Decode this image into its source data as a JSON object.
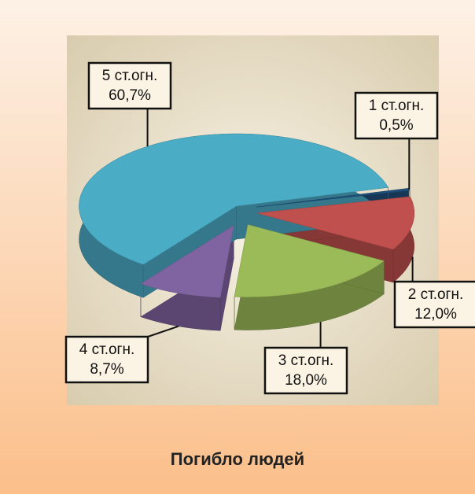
{
  "chart_data": {
    "type": "pie",
    "title": "Погибло людей",
    "categories": [
      "1 ст.огн.",
      "2 ст.огн.",
      "3 ст.огн.",
      "4 ст.огн.",
      "5 ст.огн."
    ],
    "values": [
      0.5,
      12.0,
      18.0,
      8.7,
      60.7
    ],
    "value_labels": [
      "0,5%",
      "12,0%",
      "18,0%",
      "8,7%",
      "60,7%"
    ],
    "colors": [
      "#1f4e79",
      "#c0504d",
      "#9bbb59",
      "#8064a2",
      "#4bacc6"
    ]
  }
}
